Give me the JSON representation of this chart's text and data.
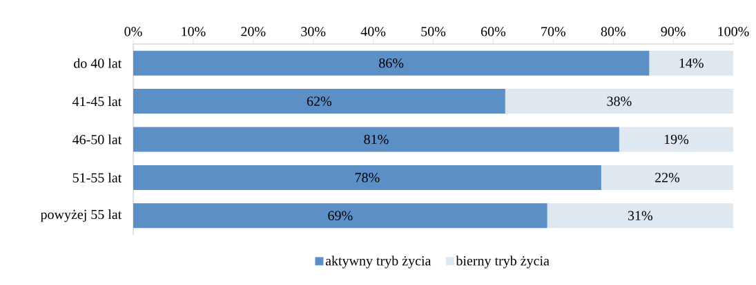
{
  "chart_data": {
    "type": "bar",
    "orientation": "horizontal",
    "stacked": true,
    "categories": [
      "do 40 lat",
      "41-45 lat",
      "46-50 lat",
      "51-55 lat",
      "powyżej 55 lat"
    ],
    "series": [
      {
        "name": "aktywny tryb życia",
        "color": "#5b8fc6",
        "values": [
          86,
          62,
          81,
          78,
          69
        ],
        "value_labels": [
          "86%",
          "62%",
          "81%",
          "78%",
          "69%"
        ]
      },
      {
        "name": "bierny tryb życia",
        "color": "#dfe7f1",
        "values": [
          14,
          38,
          19,
          22,
          31
        ],
        "value_labels": [
          "14%",
          "38%",
          "19%",
          "22%",
          "31%"
        ]
      }
    ],
    "xlim": [
      0,
      100
    ],
    "xticks": [
      {
        "value": 0,
        "label": "0%"
      },
      {
        "value": 10,
        "label": "10%"
      },
      {
        "value": 20,
        "label": "20%"
      },
      {
        "value": 30,
        "label": "30%"
      },
      {
        "value": 40,
        "label": "40%"
      },
      {
        "value": 50,
        "label": "50%"
      },
      {
        "value": 60,
        "label": "60%"
      },
      {
        "value": 70,
        "label": "70%"
      },
      {
        "value": 80,
        "label": "80%"
      },
      {
        "value": 90,
        "label": "90%"
      },
      {
        "value": 100,
        "label": "100%"
      }
    ],
    "grid": false,
    "legend": "bottom"
  }
}
